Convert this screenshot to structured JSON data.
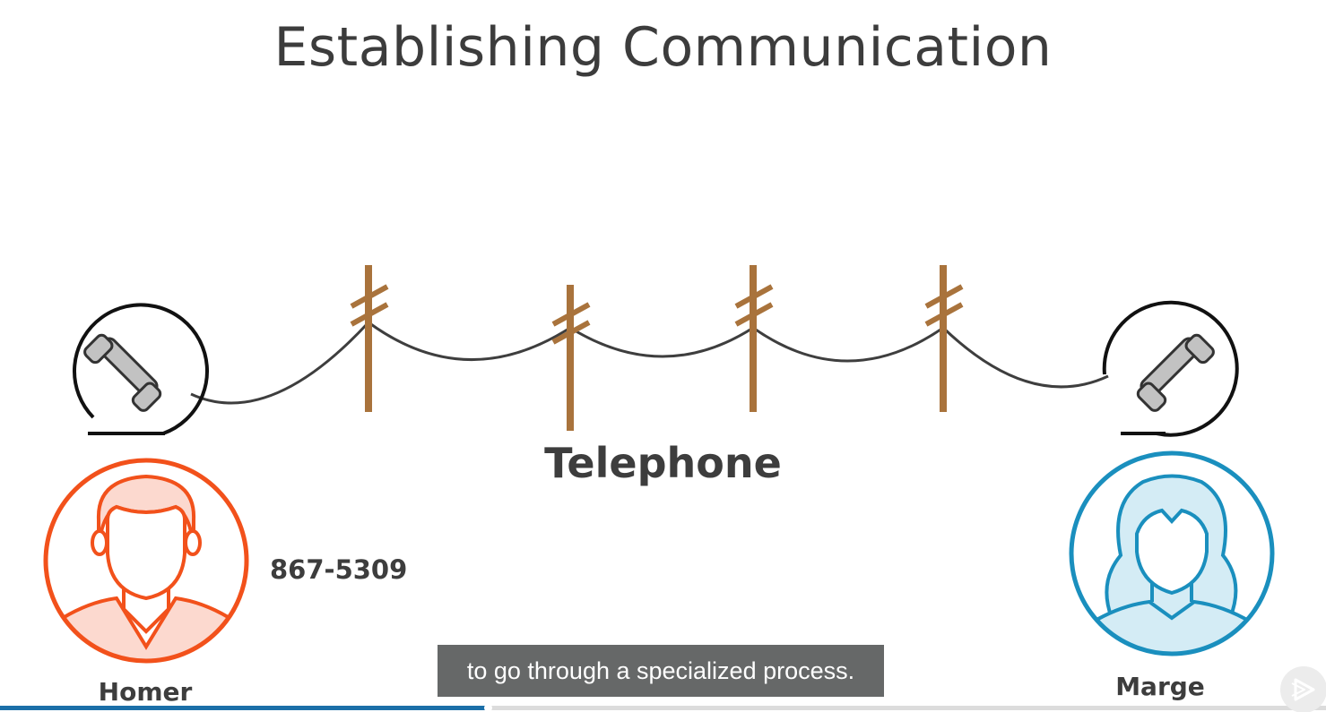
{
  "slide": {
    "title": "Establishing Communication",
    "telephone_label": "Telephone",
    "phone_number": "867-5309",
    "left_person": "Homer",
    "right_person": "Marge"
  },
  "player": {
    "caption": "to go through a specialized process.",
    "progress_fraction": 0.368,
    "play_icon": "play-overlay-icon"
  },
  "colors": {
    "title_text": "#3c3c3c",
    "pole_wood": "#a9733c",
    "wire": "#3e3e3e",
    "homer_orange": "#f2511b",
    "homer_fill": "#fcd9cf",
    "marge_blue": "#1a8fbe",
    "marge_fill": "#d4ecf5",
    "handset_gray": "#c2c2c2",
    "caption_bg": "#666868",
    "progress_fill": "#1b6fa8"
  },
  "icons": [
    "telephone-handset-icon",
    "telephone-pole-icon",
    "male-avatar-icon",
    "female-avatar-icon"
  ]
}
